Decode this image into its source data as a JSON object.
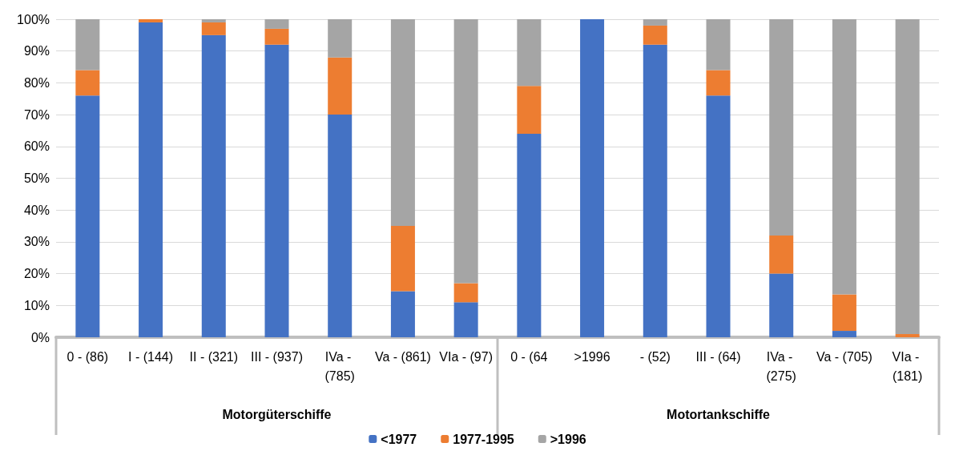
{
  "chart_data": {
    "type": "bar",
    "stacked": true,
    "categories": [
      "0 - (86)",
      "I - (144)",
      "II - (321)",
      "III - (937)",
      "IVa - (785)",
      "Va - (861)",
      "VIa - (97)",
      "0 - (64",
      ">1996",
      "- (52)",
      "III - (64)",
      "IVa - (275)",
      "Va - (705)",
      "VIa - (181)"
    ],
    "series": [
      {
        "name": "<1977",
        "color": "#4472c4",
        "values": [
          76,
          99,
          95,
          92,
          70,
          14.5,
          11,
          64,
          100,
          92,
          76,
          20,
          2,
          0
        ]
      },
      {
        "name": "1977-1995",
        "color": "#ed7d31",
        "values": [
          8,
          1,
          4,
          5,
          18,
          20.5,
          6,
          15,
          0,
          6,
          8,
          12,
          11.5,
          1
        ]
      },
      {
        "name": ">1996",
        "color": "#a5a5a5",
        "values": [
          16,
          0,
          1,
          3,
          12,
          65,
          83,
          21,
          0,
          2,
          16,
          68,
          86.5,
          99
        ]
      }
    ],
    "ylim": [
      0,
      100
    ],
    "yticks": [
      {
        "value": 0,
        "label": "0%"
      },
      {
        "value": 10,
        "label": "10%"
      },
      {
        "value": 20,
        "label": "20%"
      },
      {
        "value": 30,
        "label": "30%"
      },
      {
        "value": 40,
        "label": "40%"
      },
      {
        "value": 50,
        "label": "50%"
      },
      {
        "value": 60,
        "label": "60%"
      },
      {
        "value": 70,
        "label": "70%"
      },
      {
        "value": 80,
        "label": "80%"
      },
      {
        "value": 90,
        "label": "90%"
      },
      {
        "value": 100,
        "label": "100%"
      }
    ],
    "annotations": [
      "Motorgüterschiffe",
      "Motortankschiffe"
    ],
    "grid": "y",
    "legend": "bottom"
  }
}
